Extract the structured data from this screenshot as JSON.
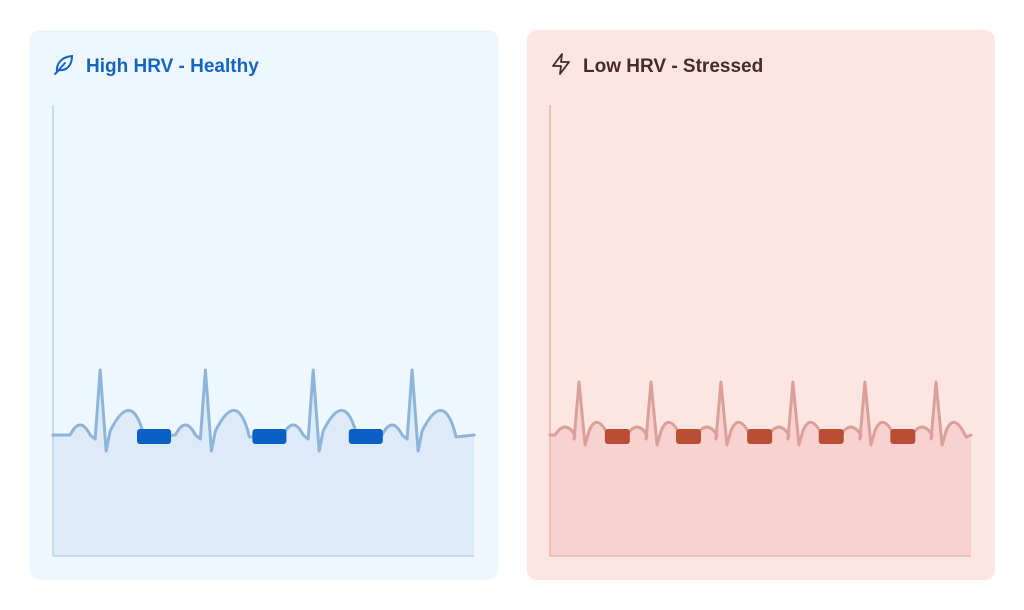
{
  "chart_data": [
    {
      "type": "line",
      "title": "High HRV - Healthy",
      "icon": "leaf-icon",
      "xlim": [
        0,
        100
      ],
      "r_peaks": [
        11.2,
        36.2,
        61.8,
        85.3
      ],
      "interval_markers": [
        24.0,
        51.4,
        74.3
      ],
      "colors": {
        "panel": "#eef7fe",
        "fill": "#ddeaf8",
        "line": "#8fb4da",
        "marker": "#0a5fc4",
        "axis": "#b9d3ec",
        "title": "#1565c0"
      }
    },
    {
      "type": "line",
      "title": "Low HRV - Stressed",
      "icon": "lightning-icon",
      "xlim": [
        0,
        100
      ],
      "r_peaks": [
        6.9,
        24.0,
        40.6,
        57.7,
        74.8,
        91.7
      ],
      "interval_markers": [
        16.0,
        32.9,
        49.8,
        66.8,
        83.8
      ],
      "colors": {
        "panel": "#fde6e2",
        "fill": "#f8d2cf",
        "line": "#d9a09c",
        "marker": "#b94e35",
        "axis": "#e8b4ae",
        "title": "#4a2a28"
      }
    }
  ]
}
